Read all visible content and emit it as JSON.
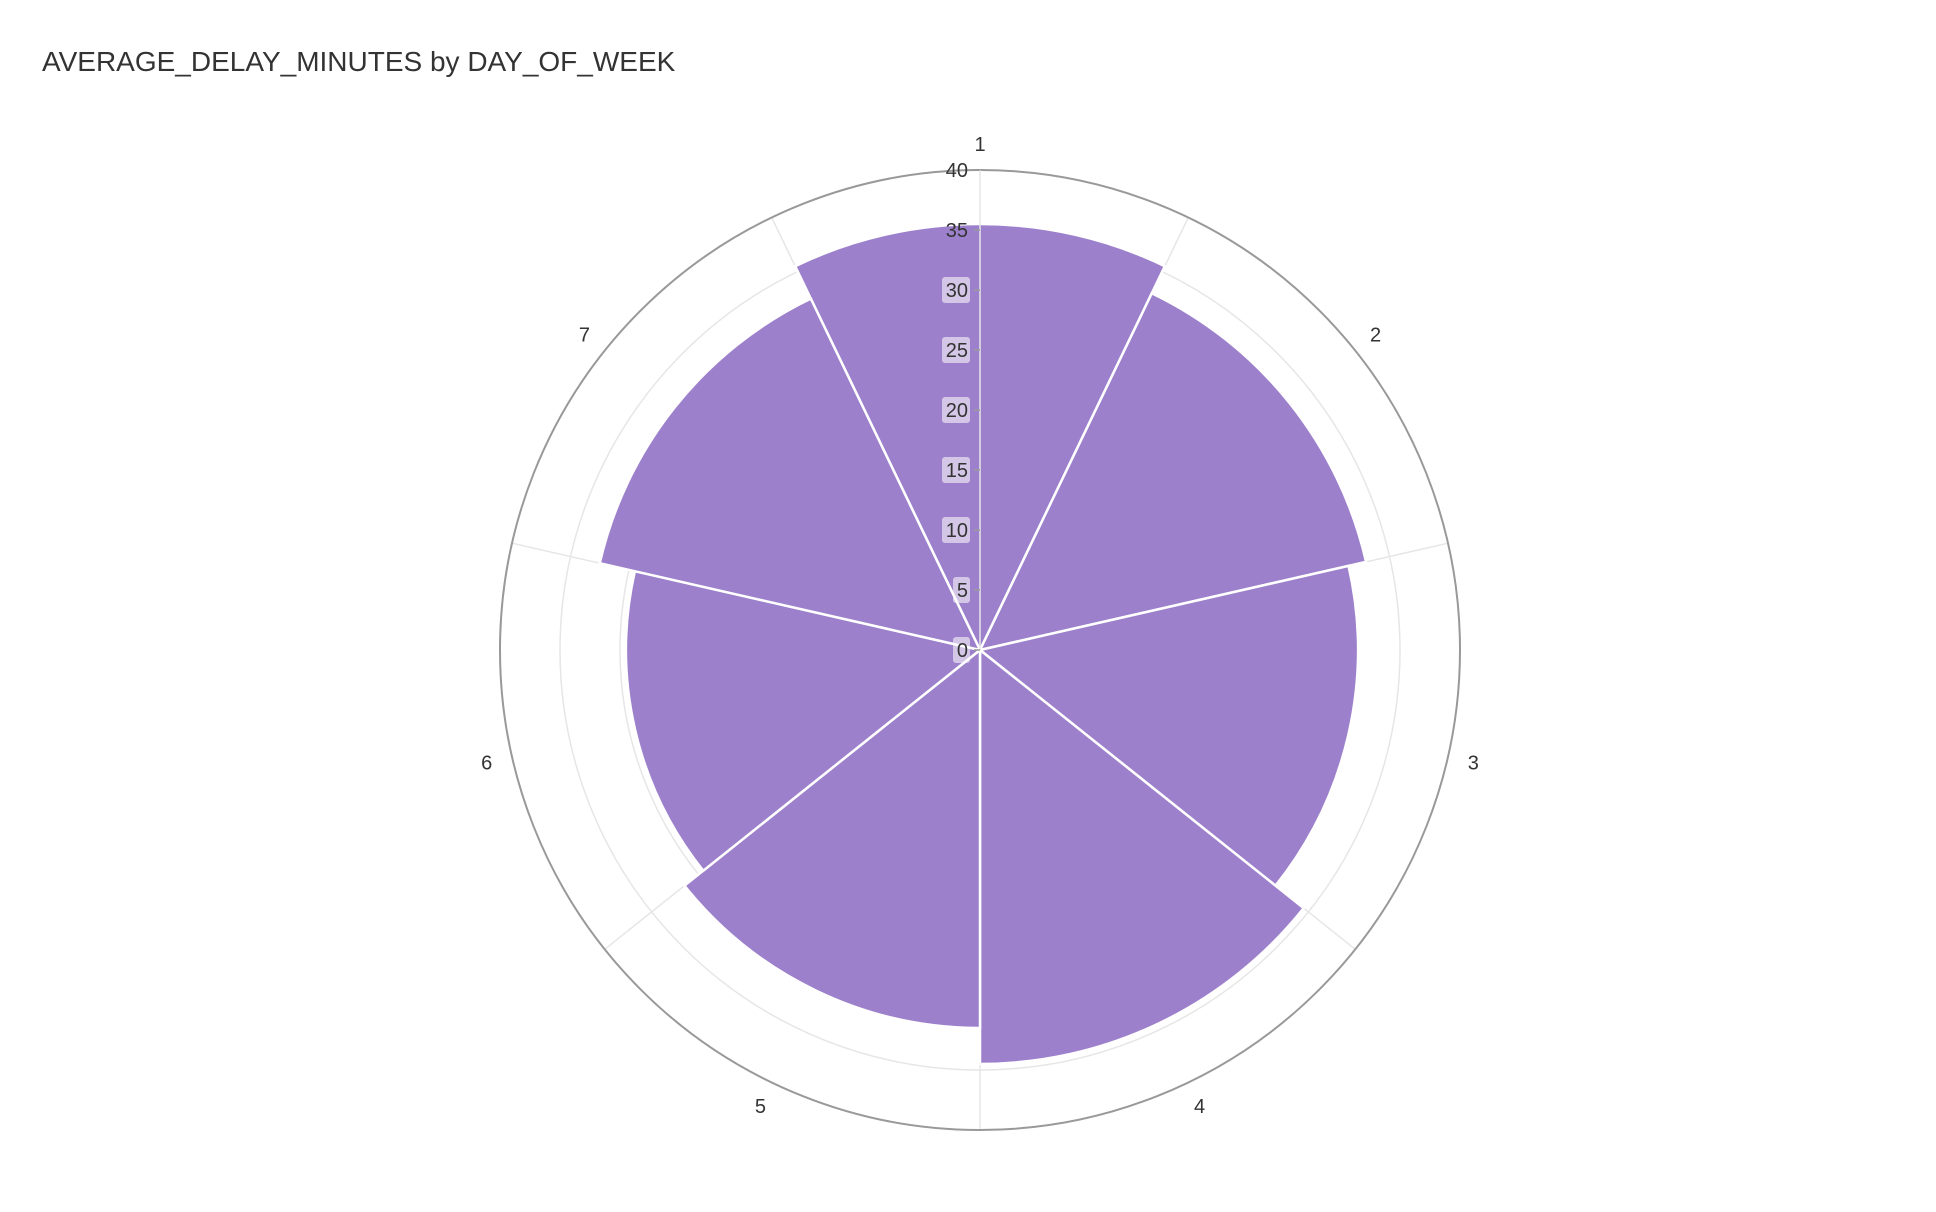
{
  "chart_data": {
    "type": "barpolar",
    "title": "AVERAGE_DELAY_MINUTES by DAY_OF_WEEK",
    "categories": [
      "1",
      "2",
      "3",
      "4",
      "5",
      "6",
      "7"
    ],
    "values": [
      35.5,
      33.0,
      31.5,
      34.5,
      31.5,
      29.5,
      32.5
    ],
    "radial_range": [
      0,
      40
    ],
    "radial_ticks": [
      "0",
      "5",
      "10",
      "15",
      "20",
      "25",
      "30",
      "35",
      "40"
    ],
    "direction": "clockwise",
    "rotation": "starts at top",
    "bar_color": "#9d80cb",
    "grid": true,
    "legend": false
  }
}
